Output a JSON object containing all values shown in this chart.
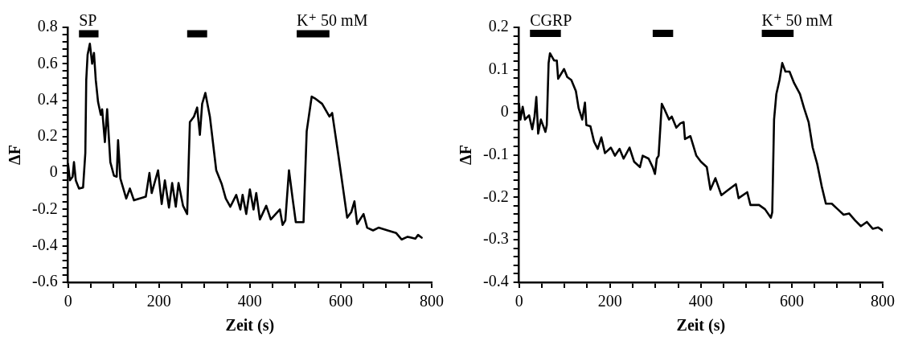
{
  "chart_data": [
    {
      "type": "line",
      "xlabel": "Zeit (s)",
      "ylabel": "ΔF",
      "xlim": [
        0,
        800
      ],
      "ylim": [
        -0.6,
        0.8
      ],
      "xticks": [
        0,
        {
          "value": 50,
          "label": null
        },
        {
          "value": 100,
          "label": null
        },
        {
          "value": 150,
          "label": null
        },
        200,
        {
          "value": 250,
          "label": null
        },
        {
          "value": 300,
          "label": null
        },
        {
          "value": 350,
          "label": null
        },
        400,
        {
          "value": 450,
          "label": null
        },
        {
          "value": 500,
          "label": null
        },
        {
          "value": 550,
          "label": null
        },
        600,
        {
          "value": 650,
          "label": null
        },
        {
          "value": 700,
          "label": null
        },
        {
          "value": 750,
          "label": null
        },
        800
      ],
      "yticks": [
        -0.6,
        {
          "value": -0.56,
          "label": null
        },
        {
          "value": -0.52,
          "label": null
        },
        {
          "value": -0.48,
          "label": null
        },
        {
          "value": -0.44,
          "label": null
        },
        -0.4,
        {
          "value": -0.36,
          "label": null
        },
        {
          "value": -0.32,
          "label": null
        },
        {
          "value": -0.28,
          "label": null
        },
        {
          "value": -0.24,
          "label": null
        },
        -0.2,
        {
          "value": -0.16,
          "label": null
        },
        {
          "value": -0.12,
          "label": null
        },
        {
          "value": -0.08,
          "label": null
        },
        {
          "value": -0.04,
          "label": null
        },
        0,
        {
          "value": 0.04,
          "label": null
        },
        {
          "value": 0.08,
          "label": null
        },
        {
          "value": 0.12,
          "label": null
        },
        {
          "value": 0.16,
          "label": null
        },
        0.2,
        {
          "value": 0.24,
          "label": null
        },
        {
          "value": 0.28,
          "label": null
        },
        {
          "value": 0.32,
          "label": null
        },
        {
          "value": 0.36,
          "label": null
        },
        0.4,
        {
          "value": 0.44,
          "label": null
        },
        {
          "value": 0.48,
          "label": null
        },
        {
          "value": 0.52,
          "label": null
        },
        {
          "value": 0.56,
          "label": null
        },
        0.6,
        {
          "value": 0.64,
          "label": null
        },
        {
          "value": 0.68,
          "label": null
        },
        {
          "value": 0.72,
          "label": null
        },
        {
          "value": 0.76,
          "label": null
        },
        0.8
      ],
      "line_style": "solid",
      "series": [
        {
          "name": "SP",
          "color": "#000000",
          "x": [
            24,
            67
          ],
          "values": [
            0.765,
            0.765
          ]
        },
        {
          "color": "#000000",
          "x": [
            262,
            306
          ],
          "values": [
            0.765,
            0.765
          ]
        },
        {
          "name": "K⁺ 50 mM",
          "color": "#000000",
          "x": [
            503,
            575
          ],
          "values": [
            0.765,
            0.765
          ]
        },
        {
          "color": "#000000",
          "x": [
            0,
            4,
            10,
            13,
            17,
            24,
            33,
            38,
            40,
            43,
            48,
            53,
            57,
            61,
            66,
            72,
            75,
            81,
            86,
            93,
            101,
            107,
            110,
            115,
            121,
            128,
            136,
            145,
            171,
            179,
            184,
            198,
            206,
            213,
            222,
            229,
            237,
            243,
            253,
            262,
            268,
            277,
            284,
            290,
            295,
            302,
            312,
            326,
            338,
            347,
            357,
            370,
            379,
            384,
            392,
            400,
            408,
            414,
            422,
            436,
            446,
            466,
            472,
            478,
            486,
            494,
            501,
            518,
            525,
            536,
            543,
            559,
            575,
            581,
            594,
            607,
            614,
            623,
            630,
            636,
            650,
            658,
            671,
            683,
            703,
            722,
            734,
            747,
            764,
            770,
            778
          ],
          "values": [
            0.05,
            -0.04,
            -0.02,
            0.06,
            -0.04,
            -0.085,
            -0.08,
            0.11,
            0.51,
            0.65,
            0.71,
            0.6,
            0.66,
            0.51,
            0.39,
            0.32,
            0.35,
            0.17,
            0.35,
            0.06,
            -0.015,
            -0.02,
            0.18,
            -0.03,
            -0.08,
            -0.14,
            -0.085,
            -0.15,
            -0.13,
            0.0,
            -0.11,
            0.015,
            -0.17,
            -0.04,
            -0.19,
            -0.055,
            -0.185,
            -0.055,
            -0.18,
            -0.225,
            0.28,
            0.31,
            0.36,
            0.21,
            0.38,
            0.44,
            0.31,
            0.015,
            -0.06,
            -0.14,
            -0.185,
            -0.12,
            -0.2,
            -0.12,
            -0.225,
            -0.09,
            -0.2,
            -0.11,
            -0.255,
            -0.18,
            -0.255,
            -0.2,
            -0.285,
            -0.26,
            0.015,
            -0.14,
            -0.27,
            -0.27,
            0.23,
            0.42,
            0.41,
            0.38,
            0.31,
            0.33,
            0.11,
            -0.12,
            -0.245,
            -0.215,
            -0.155,
            -0.28,
            -0.225,
            -0.3,
            -0.315,
            -0.3,
            -0.315,
            -0.33,
            -0.365,
            -0.35,
            -0.36,
            -0.34,
            -0.355
          ]
        }
      ]
    },
    {
      "type": "line",
      "xlabel": "Zeit (s)",
      "ylabel": "ΔF",
      "xlim": [
        0,
        800
      ],
      "ylim": [
        -0.4,
        0.2
      ],
      "xticks": [
        0,
        {
          "value": 50,
          "label": null
        },
        {
          "value": 100,
          "label": null
        },
        {
          "value": 150,
          "label": null
        },
        200,
        {
          "value": 250,
          "label": null
        },
        {
          "value": 300,
          "label": null
        },
        {
          "value": 350,
          "label": null
        },
        400,
        {
          "value": 450,
          "label": null
        },
        {
          "value": 500,
          "label": null
        },
        {
          "value": 550,
          "label": null
        },
        600,
        {
          "value": 650,
          "label": null
        },
        {
          "value": 700,
          "label": null
        },
        {
          "value": 750,
          "label": null
        },
        800
      ],
      "yticks": [
        -0.4,
        {
          "value": -0.38,
          "label": null
        },
        {
          "value": -0.36,
          "label": null
        },
        {
          "value": -0.34,
          "label": null
        },
        {
          "value": -0.32,
          "label": null
        },
        -0.3,
        {
          "value": -0.28,
          "label": null
        },
        {
          "value": -0.26,
          "label": null
        },
        {
          "value": -0.24,
          "label": null
        },
        {
          "value": -0.22,
          "label": null
        },
        -0.2,
        {
          "value": -0.18,
          "label": null
        },
        {
          "value": -0.16,
          "label": null
        },
        {
          "value": -0.14,
          "label": null
        },
        {
          "value": -0.12,
          "label": null
        },
        -0.1,
        {
          "value": -0.08,
          "label": null
        },
        {
          "value": -0.06,
          "label": null
        },
        {
          "value": -0.04,
          "label": null
        },
        {
          "value": -0.02,
          "label": null
        },
        0,
        {
          "value": 0.02,
          "label": null
        },
        {
          "value": 0.04,
          "label": null
        },
        {
          "value": 0.06,
          "label": null
        },
        {
          "value": 0.08,
          "label": null
        },
        0.1,
        {
          "value": 0.12,
          "label": null
        },
        {
          "value": 0.14,
          "label": null
        },
        {
          "value": 0.16,
          "label": null
        },
        {
          "value": 0.18,
          "label": null
        },
        0.2
      ],
      "line_style": "solid",
      "series": [
        {
          "name": "CGRP",
          "color": "#000000",
          "x": [
            24,
            92
          ],
          "values": [
            0.186,
            0.186
          ]
        },
        {
          "color": "#000000",
          "x": [
            294,
            339
          ],
          "values": [
            0.186,
            0.186
          ]
        },
        {
          "name": "K⁺ 50 mM",
          "color": "#000000",
          "x": [
            534,
            604
          ],
          "values": [
            0.186,
            0.186
          ]
        },
        {
          "color": "#000000",
          "x": [
            0,
            3,
            8,
            13,
            22,
            29,
            34,
            38,
            42,
            48,
            58,
            61,
            65,
            68,
            77,
            83,
            86,
            99,
            106,
            115,
            125,
            131,
            139,
            145,
            148,
            157,
            165,
            173,
            181,
            189,
            202,
            211,
            221,
            230,
            243,
            253,
            266,
            272,
            285,
            294,
            299,
            303,
            307,
            314,
            320,
            330,
            336,
            346,
            355,
            362,
            365,
            377,
            390,
            400,
            413,
            421,
            432,
            445,
            461,
            477,
            483,
            502,
            509,
            528,
            541,
            554,
            557,
            561,
            566,
            573,
            579,
            586,
            595,
            605,
            618,
            627,
            637,
            646,
            656,
            666,
            675,
            688,
            701,
            714,
            726,
            739,
            752,
            765,
            778,
            790,
            800
          ],
          "values": [
            0.02,
            -0.017,
            0.013,
            -0.017,
            -0.007,
            -0.04,
            -0.01,
            0.036,
            -0.05,
            -0.017,
            -0.046,
            -0.03,
            0.116,
            0.139,
            0.122,
            0.122,
            0.079,
            0.102,
            0.083,
            0.076,
            0.05,
            0.01,
            -0.017,
            0.023,
            -0.03,
            -0.033,
            -0.069,
            -0.086,
            -0.059,
            -0.096,
            -0.083,
            -0.102,
            -0.086,
            -0.109,
            -0.083,
            -0.116,
            -0.129,
            -0.102,
            -0.109,
            -0.129,
            -0.145,
            -0.109,
            -0.102,
            0.02,
            0.007,
            -0.017,
            -0.01,
            -0.036,
            -0.026,
            -0.023,
            -0.063,
            -0.056,
            -0.102,
            -0.116,
            -0.129,
            -0.182,
            -0.155,
            -0.195,
            -0.182,
            -0.169,
            -0.202,
            -0.188,
            -0.218,
            -0.218,
            -0.228,
            -0.248,
            -0.235,
            -0.017,
            0.043,
            0.076,
            0.116,
            0.096,
            0.096,
            0.069,
            0.043,
            0.01,
            -0.023,
            -0.083,
            -0.122,
            -0.175,
            -0.215,
            -0.215,
            -0.228,
            -0.241,
            -0.238,
            -0.254,
            -0.268,
            -0.258,
            -0.274,
            -0.271,
            -0.278
          ]
        }
      ]
    }
  ]
}
